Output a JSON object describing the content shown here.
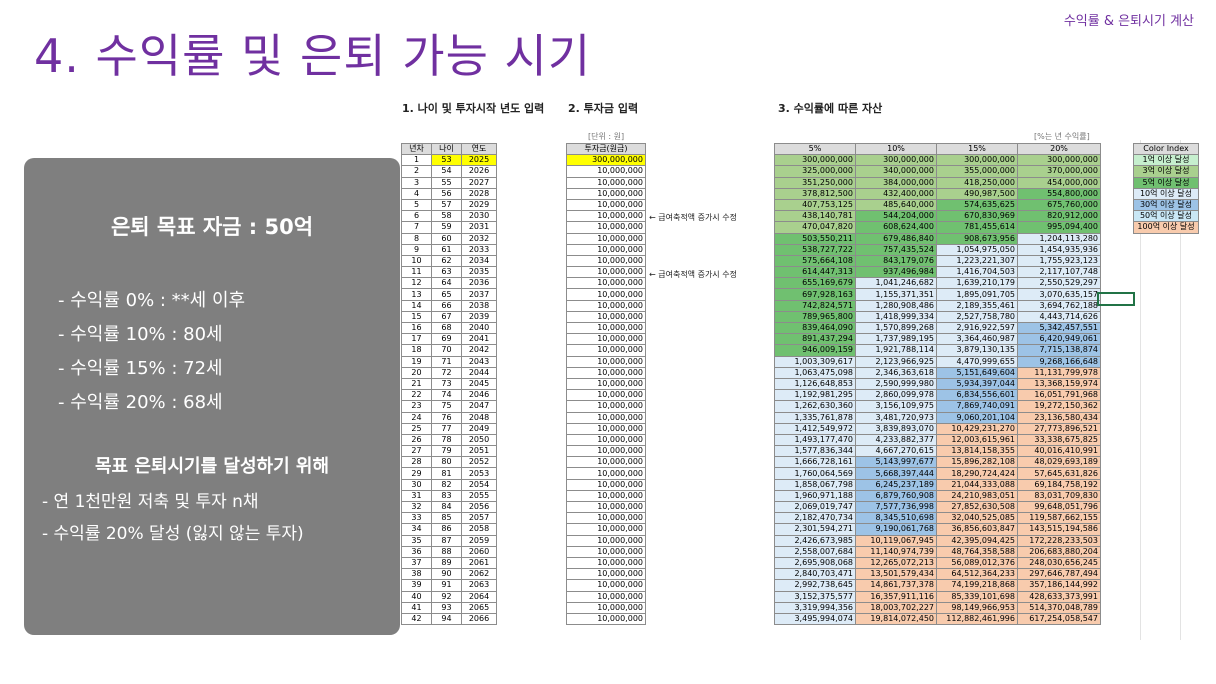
{
  "header": {
    "title": "4. 수익률 및 은퇴 가능 시기",
    "tag": "수익률 & 은퇴시기 계산"
  },
  "sections": {
    "age": "1. 나이 및 투자시작 년도 입력",
    "investment": "2. 투자금 입력",
    "assets": "3. 수익률에 따른 자산"
  },
  "notes": {
    "unit": "[단위 : 원]",
    "rate": "[%는 년 수익률]"
  },
  "memos": [
    "← 급여축적액 증가시 수정",
    "← 급여축적액 증가시 수정"
  ],
  "table1": {
    "headers": [
      "년차",
      "나이",
      "연도"
    ],
    "rows": [
      [
        "1",
        "53",
        "2025"
      ],
      [
        "2",
        "54",
        "2026"
      ],
      [
        "3",
        "55",
        "2027"
      ],
      [
        "4",
        "56",
        "2028"
      ],
      [
        "5",
        "57",
        "2029"
      ],
      [
        "6",
        "58",
        "2030"
      ],
      [
        "7",
        "59",
        "2031"
      ],
      [
        "8",
        "60",
        "2032"
      ],
      [
        "9",
        "61",
        "2033"
      ],
      [
        "10",
        "62",
        "2034"
      ],
      [
        "11",
        "63",
        "2035"
      ],
      [
        "12",
        "64",
        "2036"
      ],
      [
        "13",
        "65",
        "2037"
      ],
      [
        "14",
        "66",
        "2038"
      ],
      [
        "15",
        "67",
        "2039"
      ],
      [
        "16",
        "68",
        "2040"
      ],
      [
        "17",
        "69",
        "2041"
      ],
      [
        "18",
        "70",
        "2042"
      ],
      [
        "19",
        "71",
        "2043"
      ],
      [
        "20",
        "72",
        "2044"
      ],
      [
        "21",
        "73",
        "2045"
      ],
      [
        "22",
        "74",
        "2046"
      ],
      [
        "23",
        "75",
        "2047"
      ],
      [
        "24",
        "76",
        "2048"
      ],
      [
        "25",
        "77",
        "2049"
      ],
      [
        "26",
        "78",
        "2050"
      ],
      [
        "27",
        "79",
        "2051"
      ],
      [
        "28",
        "80",
        "2052"
      ],
      [
        "29",
        "81",
        "2053"
      ],
      [
        "30",
        "82",
        "2054"
      ],
      [
        "31",
        "83",
        "2055"
      ],
      [
        "32",
        "84",
        "2056"
      ],
      [
        "33",
        "85",
        "2057"
      ],
      [
        "34",
        "86",
        "2058"
      ],
      [
        "35",
        "87",
        "2059"
      ],
      [
        "36",
        "88",
        "2060"
      ],
      [
        "37",
        "89",
        "2061"
      ],
      [
        "38",
        "90",
        "2062"
      ],
      [
        "39",
        "91",
        "2063"
      ],
      [
        "40",
        "92",
        "2064"
      ],
      [
        "41",
        "93",
        "2065"
      ],
      [
        "42",
        "94",
        "2066"
      ]
    ]
  },
  "table2": {
    "header": "투자금(원금)",
    "first": "300,000,000",
    "rest": "10,000,000",
    "count": 41
  },
  "table3": {
    "headers": [
      "5%",
      "10%",
      "15%",
      "20%"
    ],
    "rows": [
      [
        "300,000,000",
        "300,000,000",
        "300,000,000",
        "300,000,000"
      ],
      [
        "325,000,000",
        "340,000,000",
        "355,000,000",
        "370,000,000"
      ],
      [
        "351,250,000",
        "384,000,000",
        "418,250,000",
        "454,000,000"
      ],
      [
        "378,812,500",
        "432,400,000",
        "490,987,500",
        "554,800,000"
      ],
      [
        "407,753,125",
        "485,640,000",
        "574,635,625",
        "675,760,000"
      ],
      [
        "438,140,781",
        "544,204,000",
        "670,830,969",
        "820,912,000"
      ],
      [
        "470,047,820",
        "608,624,400",
        "781,455,614",
        "995,094,400"
      ],
      [
        "503,550,211",
        "679,486,840",
        "908,673,956",
        "1,204,113,280"
      ],
      [
        "538,727,722",
        "757,435,524",
        "1,054,975,050",
        "1,454,935,936"
      ],
      [
        "575,664,108",
        "843,179,076",
        "1,223,221,307",
        "1,755,923,123"
      ],
      [
        "614,447,313",
        "937,496,984",
        "1,416,704,503",
        "2,117,107,748"
      ],
      [
        "655,169,679",
        "1,041,246,682",
        "1,639,210,179",
        "2,550,529,297"
      ],
      [
        "697,928,163",
        "1,155,371,351",
        "1,895,091,705",
        "3,070,635,157"
      ],
      [
        "742,824,571",
        "1,280,908,486",
        "2,189,355,461",
        "3,694,762,188"
      ],
      [
        "789,965,800",
        "1,418,999,334",
        "2,527,758,780",
        "4,443,714,626"
      ],
      [
        "839,464,090",
        "1,570,899,268",
        "2,916,922,597",
        "5,342,457,551"
      ],
      [
        "891,437,294",
        "1,737,989,195",
        "3,364,460,987",
        "6,420,949,061"
      ],
      [
        "946,009,159",
        "1,921,788,114",
        "3,879,130,135",
        "7,715,138,874"
      ],
      [
        "1,003,309,617",
        "2,123,966,925",
        "4,470,999,655",
        "9,268,166,648"
      ],
      [
        "1,063,475,098",
        "2,346,363,618",
        "5,151,649,604",
        "11,131,799,978"
      ],
      [
        "1,126,648,853",
        "2,590,999,980",
        "5,934,397,044",
        "13,368,159,974"
      ],
      [
        "1,192,981,295",
        "2,860,099,978",
        "6,834,556,601",
        "16,051,791,968"
      ],
      [
        "1,262,630,360",
        "3,156,109,975",
        "7,869,740,091",
        "19,272,150,362"
      ],
      [
        "1,335,761,878",
        "3,481,720,973",
        "9,060,201,104",
        "23,136,580,434"
      ],
      [
        "1,412,549,972",
        "3,839,893,070",
        "10,429,231,270",
        "27,773,896,521"
      ],
      [
        "1,493,177,470",
        "4,233,882,377",
        "12,003,615,961",
        "33,338,675,825"
      ],
      [
        "1,577,836,344",
        "4,667,270,615",
        "13,814,158,355",
        "40,016,410,991"
      ],
      [
        "1,666,728,161",
        "5,143,997,677",
        "15,896,282,108",
        "48,029,693,189"
      ],
      [
        "1,760,064,569",
        "5,668,397,444",
        "18,290,724,424",
        "57,645,631,826"
      ],
      [
        "1,858,067,798",
        "6,245,237,189",
        "21,044,333,088",
        "69,184,758,192"
      ],
      [
        "1,960,971,188",
        "6,879,760,908",
        "24,210,983,051",
        "83,031,709,830"
      ],
      [
        "2,069,019,747",
        "7,577,736,998",
        "27,852,630,508",
        "99,648,051,796"
      ],
      [
        "2,182,470,734",
        "8,345,510,698",
        "32,040,525,085",
        "119,587,662,155"
      ],
      [
        "2,301,594,271",
        "9,190,061,768",
        "36,856,603,847",
        "143,515,194,586"
      ],
      [
        "2,426,673,985",
        "10,119,067,945",
        "42,395,094,425",
        "172,228,233,503"
      ],
      [
        "2,558,007,684",
        "11,140,974,739",
        "48,764,358,588",
        "206,683,880,204"
      ],
      [
        "2,695,908,068",
        "12,265,072,213",
        "56,089,012,376",
        "248,030,656,245"
      ],
      [
        "2,840,703,471",
        "13,501,579,434",
        "64,512,364,233",
        "297,646,787,494"
      ],
      [
        "2,992,738,645",
        "14,861,737,378",
        "74,199,218,868",
        "357,186,144,992"
      ],
      [
        "3,152,375,577",
        "16,357,911,116",
        "85,339,101,698",
        "428,633,373,991"
      ],
      [
        "3,319,994,356",
        "18,003,702,227",
        "98,149,966,953",
        "514,370,048,789"
      ],
      [
        "3,495,994,074",
        "19,814,072,450",
        "112,882,461,996",
        "617,254,058,547"
      ]
    ]
  },
  "color_index": {
    "header": "Color Index",
    "items": [
      {
        "label": "1억 이상 달성",
        "color": "#c6efce"
      },
      {
        "label": "3억 이상 달성",
        "color": "#a9d08e"
      },
      {
        "label": "5억 이상 달성",
        "color": "#70c070"
      },
      {
        "label": "10억 이상 달성",
        "color": "#ddebf7"
      },
      {
        "label": "30억 이상 달성",
        "color": "#9dc3e6"
      },
      {
        "label": "50억 이상 달성",
        "color": "#c9e7f5"
      },
      {
        "label": "100억 이상 달성",
        "color": "#f8cbad"
      }
    ]
  },
  "panel": {
    "goal": "은퇴 목표 자금 : 50억",
    "rates": [
      "- 수익률   0% : **세 이후",
      "- 수익률 10% : 80세",
      "- 수익률 15% : 72세",
      "- 수익률 20% : 68세"
    ],
    "subtitle": "목표 은퇴시기를 달성하기 위해",
    "plans": [
      "- 연 1천만원 저축 및 투자 n채",
      "- 수익률 20% 달성 (잃지 않는 투자)"
    ]
  }
}
